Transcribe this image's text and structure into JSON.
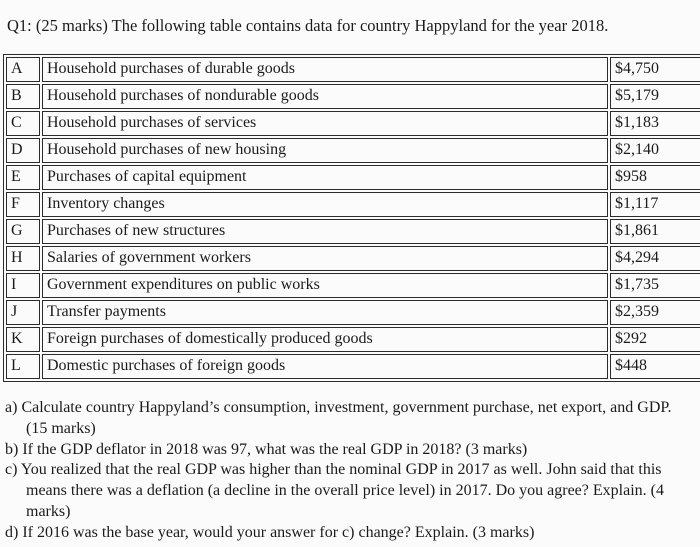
{
  "title": "Q1: (25 marks) The following table contains data for country Happyland for the year 2018.",
  "table": {
    "rows": [
      {
        "label": "A",
        "description": "Household purchases of durable goods",
        "value": "$4,750"
      },
      {
        "label": "B",
        "description": "Household purchases of nondurable goods",
        "value": "$5,179"
      },
      {
        "label": "C",
        "description": "Household purchases of services",
        "value": "$1,183"
      },
      {
        "label": "D",
        "description": "Household purchases of new housing",
        "value": "$2,140"
      },
      {
        "label": "E",
        "description": "Purchases of capital equipment",
        "value": "$958"
      },
      {
        "label": "F",
        "description": "Inventory changes",
        "value": "$1,117"
      },
      {
        "label": "G",
        "description": "Purchases of new structures",
        "value": "$1,861"
      },
      {
        "label": "H",
        "description": "Salaries of government workers",
        "value": "$4,294"
      },
      {
        "label": "I",
        "description": "Government expenditures on public works",
        "value": "$1,735"
      },
      {
        "label": "J",
        "description": "Transfer payments",
        "value": "$2,359"
      },
      {
        "label": "K",
        "description": "Foreign purchases of domestically produced goods",
        "value": "$292"
      },
      {
        "label": "L",
        "description": "Domestic purchases of foreign goods",
        "value": "$448"
      }
    ]
  },
  "questions": [
    {
      "marker": "a)",
      "text": "Calculate country Happyland’s consumption, investment, government purchase, net export, and GDP. (15 marks)"
    },
    {
      "marker": "b)",
      "text": "If the GDP deflator in 2018 was 97, what was the real GDP in 2018? (3 marks)"
    },
    {
      "marker": "c)",
      "text": "You realized that the real GDP was higher than the nominal GDP in 2017 as well. John said that this means there was a deflation (a decline in the overall price level) in 2017. Do you agree? Explain. (4 marks)"
    },
    {
      "marker": "d)",
      "text": "If 2016 was the base year, would your answer for c) change? Explain. (3 marks)"
    }
  ]
}
